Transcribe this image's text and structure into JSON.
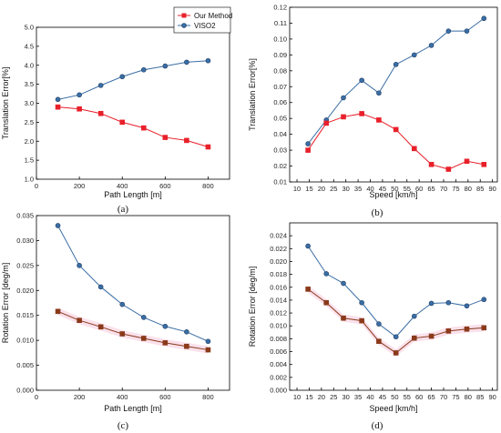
{
  "colors": {
    "our_method": "#e8202a",
    "viso2": "#3a6ea5",
    "band": "#f6c9dc",
    "dark_marker": "#8a3a1a"
  },
  "chart_data": [
    {
      "panel": "a",
      "caption": "(a)",
      "type": "line",
      "xlabel": "Path Length [m]",
      "ylabel": "Translation Error[%]",
      "xlim": [
        0,
        900
      ],
      "ylim": [
        1.0,
        5.0
      ],
      "xticks": [
        "0",
        "200",
        "400",
        "600",
        "800"
      ],
      "yticks": [
        "1.0",
        "1.5",
        "2.0",
        "2.5",
        "3.0",
        "3.5",
        "4.0",
        "4.5",
        "5.0"
      ],
      "legend": {
        "placement": "top-right"
      },
      "series": [
        {
          "name": "Our Method",
          "marker": "square",
          "x": [
            100,
            200,
            300,
            400,
            500,
            600,
            700,
            800
          ],
          "y": [
            2.9,
            2.85,
            2.73,
            2.5,
            2.35,
            2.1,
            2.02,
            1.85
          ]
        },
        {
          "name": "VISO2",
          "marker": "circle",
          "x": [
            100,
            200,
            300,
            400,
            500,
            600,
            700,
            800
          ],
          "y": [
            3.1,
            3.22,
            3.47,
            3.7,
            3.88,
            3.98,
            4.08,
            4.12
          ]
        }
      ]
    },
    {
      "panel": "b",
      "caption": "(b)",
      "type": "line",
      "xlabel": "Speed [km/h]",
      "ylabel": "Translation Error[%]",
      "xlim": [
        7,
        92
      ],
      "ylim": [
        0.01,
        0.12
      ],
      "xticks": [
        "10",
        "15",
        "20",
        "25",
        "30",
        "35",
        "40",
        "45",
        "50",
        "55",
        "60",
        "65",
        "70",
        "75",
        "80",
        "85",
        "90"
      ],
      "yticks": [
        "0.01",
        "0.02",
        "0.03",
        "0.04",
        "0.05",
        "0.06",
        "0.07",
        "0.08",
        "0.09",
        "0.10",
        "0.11",
        "0.12"
      ],
      "series": [
        {
          "name": "Our Method",
          "marker": "square",
          "x": [
            14.5,
            22,
            29,
            36.5,
            43.5,
            50.5,
            58,
            65,
            72,
            79.5,
            86.5
          ],
          "y": [
            0.03,
            0.047,
            0.051,
            0.053,
            0.049,
            0.043,
            0.031,
            0.021,
            0.018,
            0.023,
            0.021
          ]
        },
        {
          "name": "VISO2",
          "marker": "circle",
          "x": [
            14.5,
            22,
            29,
            36.5,
            43.5,
            50.5,
            58,
            65,
            72,
            79.5,
            86.5
          ],
          "y": [
            0.034,
            0.049,
            0.063,
            0.074,
            0.066,
            0.084,
            0.09,
            0.096,
            0.105,
            0.105,
            0.113
          ]
        }
      ]
    },
    {
      "panel": "c",
      "caption": "(c)",
      "type": "line",
      "xlabel": "Path Length [m]",
      "ylabel": "Rotation Error [deg/m]",
      "xlim": [
        0,
        900
      ],
      "ylim": [
        0.0,
        0.035
      ],
      "xticks": [
        "0",
        "200",
        "400",
        "600",
        "800"
      ],
      "yticks": [
        "0.000",
        "0.005",
        "0.010",
        "0.015",
        "0.020",
        "0.025",
        "0.030",
        "0.035"
      ],
      "series": [
        {
          "name": "Our Method",
          "marker": "square",
          "x": [
            100,
            200,
            300,
            400,
            500,
            600,
            700,
            800
          ],
          "y": [
            0.0158,
            0.014,
            0.0127,
            0.0113,
            0.0104,
            0.0095,
            0.0088,
            0.0081
          ]
        },
        {
          "name": "VISO2",
          "marker": "circle",
          "x": [
            100,
            200,
            300,
            400,
            500,
            600,
            700,
            800
          ],
          "y": [
            0.033,
            0.025,
            0.0207,
            0.0172,
            0.0146,
            0.0128,
            0.0117,
            0.0098
          ]
        }
      ]
    },
    {
      "panel": "d",
      "caption": "(d)",
      "type": "line",
      "xlabel": "Speed [km/h]",
      "ylabel": "Rotation Error [deg/m]",
      "xlim": [
        7,
        92
      ],
      "ylim": [
        0.0,
        0.026
      ],
      "xticks": [
        "10",
        "15",
        "20",
        "25",
        "30",
        "35",
        "40",
        "45",
        "50",
        "55",
        "60",
        "65",
        "70",
        "75",
        "80",
        "85",
        "90"
      ],
      "yticks": [
        "0.000",
        "0.002",
        "0.004",
        "0.006",
        "0.008",
        "0.010",
        "0.012",
        "0.014",
        "0.016",
        "0.018",
        "0.020",
        "0.022",
        "0.024"
      ],
      "series": [
        {
          "name": "Our Method",
          "marker": "square",
          "x": [
            14.5,
            22,
            29,
            36.5,
            43.5,
            50.5,
            58,
            65,
            72,
            79.5,
            86.5
          ],
          "y": [
            0.0157,
            0.0136,
            0.0112,
            0.0108,
            0.0076,
            0.0058,
            0.0081,
            0.0084,
            0.0092,
            0.0095,
            0.0097
          ]
        },
        {
          "name": "VISO2",
          "marker": "circle",
          "x": [
            14.5,
            22,
            29,
            36.5,
            43.5,
            50.5,
            58,
            65,
            72,
            79.5,
            86.5
          ],
          "y": [
            0.0224,
            0.0181,
            0.0166,
            0.0136,
            0.0103,
            0.0083,
            0.0115,
            0.0135,
            0.0136,
            0.0131,
            0.0141
          ]
        }
      ]
    }
  ]
}
